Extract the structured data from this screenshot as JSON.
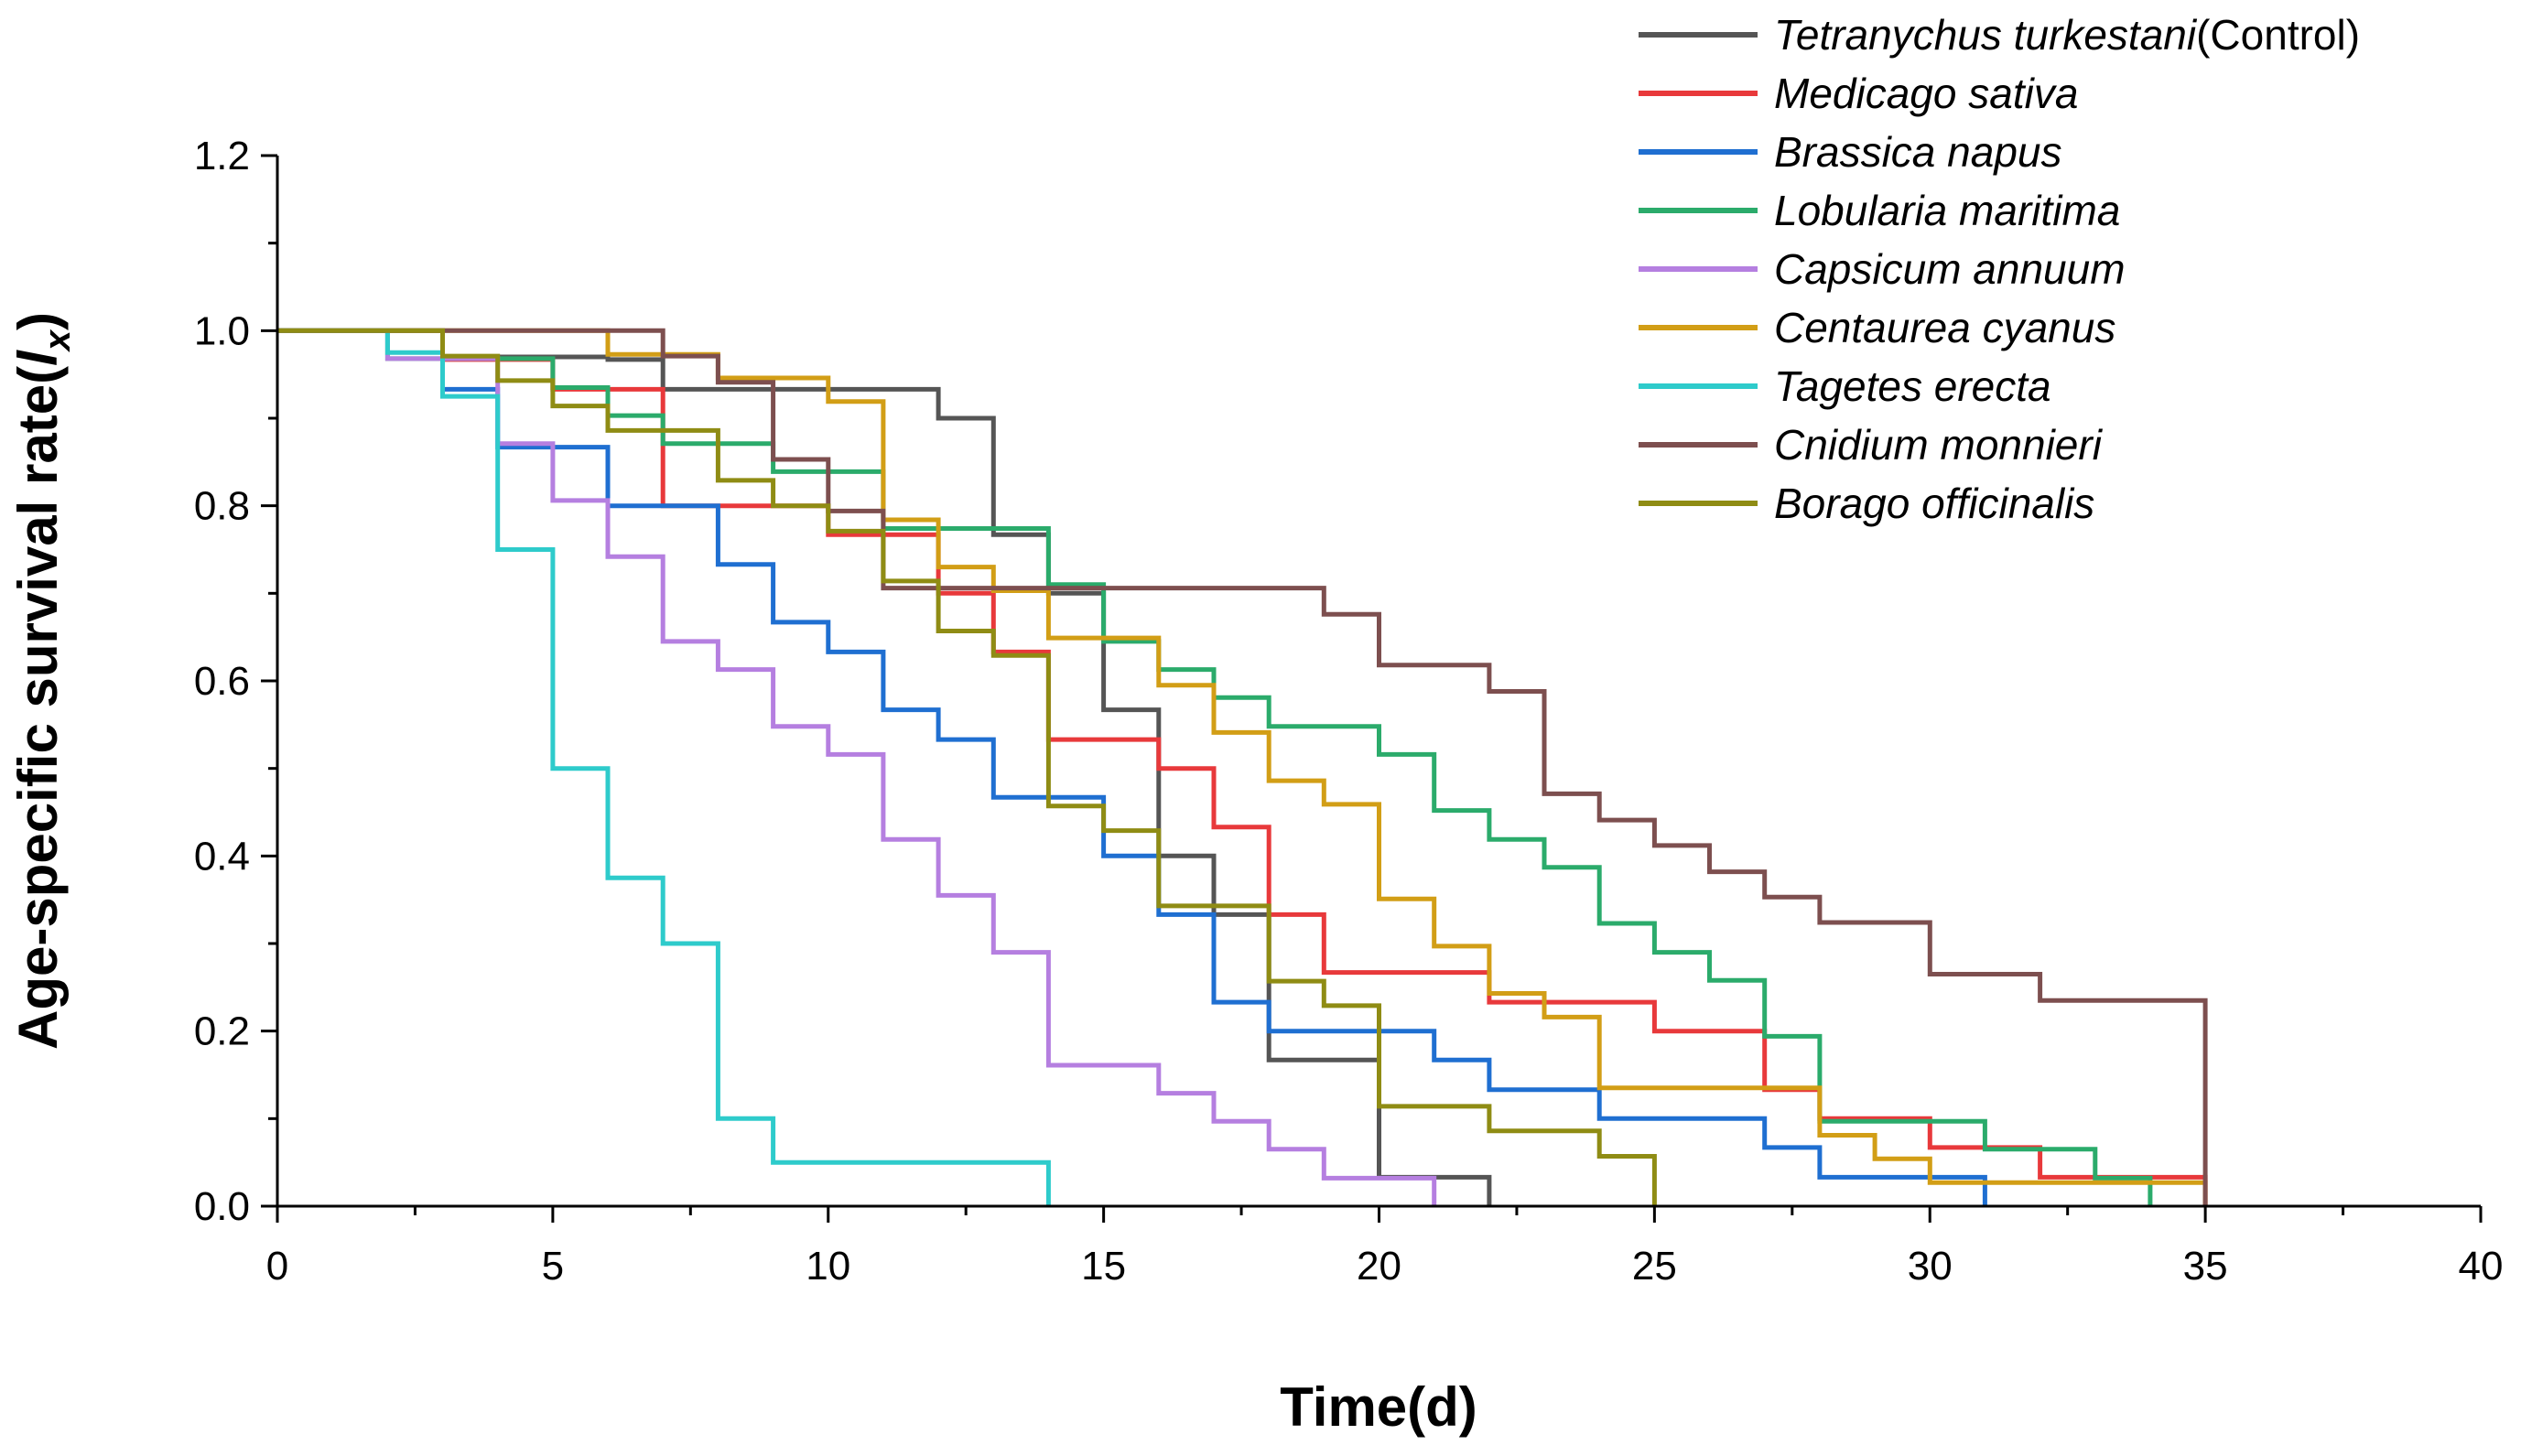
{
  "chart_data": {
    "type": "line",
    "step": true,
    "title": "",
    "xlabel": "Time(d)",
    "ylabel_prefix": "Age-specific survival rate(",
    "ylabel_symbol": "l",
    "ylabel_subscript": "x",
    "ylabel_suffix": ")",
    "xlim": [
      0,
      40
    ],
    "ylim": [
      0,
      1.2
    ],
    "x_ticks": [
      "0",
      "5",
      "10",
      "15",
      "20",
      "25",
      "30",
      "35",
      "40"
    ],
    "y_ticks": [
      "0.0",
      "0.2",
      "0.4",
      "0.6",
      "0.8",
      "1.0",
      "1.2"
    ],
    "grid": false,
    "legend_position": "top-right",
    "series": [
      {
        "name": "Tetranychus turkestani",
        "suffix": "(Control)",
        "color": "#555555",
        "points": [
          [
            0,
            1.0
          ],
          [
            3,
            0.97
          ],
          [
            6,
            0.967
          ],
          [
            7,
            0.933
          ],
          [
            12,
            0.9
          ],
          [
            13,
            0.767
          ],
          [
            14,
            0.7
          ],
          [
            15,
            0.567
          ],
          [
            16,
            0.4
          ],
          [
            17,
            0.333
          ],
          [
            18,
            0.167
          ],
          [
            20,
            0.033
          ],
          [
            22,
            0.0
          ]
        ]
      },
      {
        "name": "Medicago sativa",
        "suffix": "",
        "color": "#e8393b",
        "points": [
          [
            0,
            1.0
          ],
          [
            3,
            0.967
          ],
          [
            5,
            0.933
          ],
          [
            7,
            0.8
          ],
          [
            10,
            0.767
          ],
          [
            12,
            0.7
          ],
          [
            13,
            0.633
          ],
          [
            14,
            0.533
          ],
          [
            16,
            0.5
          ],
          [
            17,
            0.433
          ],
          [
            18,
            0.333
          ],
          [
            19,
            0.267
          ],
          [
            22,
            0.233
          ],
          [
            25,
            0.2
          ],
          [
            27,
            0.133
          ],
          [
            28,
            0.1
          ],
          [
            30,
            0.067
          ],
          [
            32,
            0.033
          ],
          [
            35,
            0.0
          ]
        ]
      },
      {
        "name": "Brassica napus",
        "suffix": "",
        "color": "#1f6fd1",
        "points": [
          [
            0,
            1.0
          ],
          [
            3,
            0.933
          ],
          [
            4,
            0.867
          ],
          [
            6,
            0.8
          ],
          [
            8,
            0.733
          ],
          [
            9,
            0.667
          ],
          [
            10,
            0.633
          ],
          [
            11,
            0.567
          ],
          [
            12,
            0.533
          ],
          [
            13,
            0.467
          ],
          [
            15,
            0.4
          ],
          [
            16,
            0.333
          ],
          [
            17,
            0.233
          ],
          [
            18,
            0.2
          ],
          [
            21,
            0.167
          ],
          [
            22,
            0.133
          ],
          [
            24,
            0.1
          ],
          [
            27,
            0.067
          ],
          [
            28,
            0.033
          ],
          [
            31,
            0.0
          ]
        ]
      },
      {
        "name": "Lobularia maritima",
        "suffix": "",
        "color": "#2bab6b",
        "points": [
          [
            0,
            1.0
          ],
          [
            2,
            0.968
          ],
          [
            5,
            0.935
          ],
          [
            6,
            0.903
          ],
          [
            7,
            0.871
          ],
          [
            9,
            0.839
          ],
          [
            11,
            0.774
          ],
          [
            14,
            0.71
          ],
          [
            15,
            0.645
          ],
          [
            16,
            0.613
          ],
          [
            17,
            0.581
          ],
          [
            18,
            0.548
          ],
          [
            20,
            0.516
          ],
          [
            21,
            0.452
          ],
          [
            22,
            0.419
          ],
          [
            23,
            0.387
          ],
          [
            24,
            0.323
          ],
          [
            25,
            0.29
          ],
          [
            26,
            0.258
          ],
          [
            27,
            0.194
          ],
          [
            28,
            0.097
          ],
          [
            31,
            0.065
          ],
          [
            33,
            0.032
          ],
          [
            34,
            0.0
          ]
        ]
      },
      {
        "name": "Capsicum annuum",
        "suffix": "",
        "color": "#b57fe0",
        "points": [
          [
            0,
            1.0
          ],
          [
            2,
            0.968
          ],
          [
            4,
            0.871
          ],
          [
            5,
            0.806
          ],
          [
            6,
            0.742
          ],
          [
            7,
            0.645
          ],
          [
            8,
            0.613
          ],
          [
            9,
            0.548
          ],
          [
            10,
            0.516
          ],
          [
            11,
            0.419
          ],
          [
            12,
            0.355
          ],
          [
            13,
            0.29
          ],
          [
            14,
            0.161
          ],
          [
            16,
            0.129
          ],
          [
            17,
            0.097
          ],
          [
            18,
            0.065
          ],
          [
            19,
            0.032
          ],
          [
            21,
            0.0
          ]
        ]
      },
      {
        "name": "Centaurea cyanus",
        "suffix": "",
        "color": "#d29e16",
        "points": [
          [
            0,
            1.0
          ],
          [
            6,
            0.973
          ],
          [
            8,
            0.946
          ],
          [
            10,
            0.919
          ],
          [
            11,
            0.784
          ],
          [
            12,
            0.73
          ],
          [
            13,
            0.703
          ],
          [
            14,
            0.649
          ],
          [
            16,
            0.595
          ],
          [
            17,
            0.541
          ],
          [
            18,
            0.486
          ],
          [
            19,
            0.459
          ],
          [
            20,
            0.351
          ],
          [
            21,
            0.297
          ],
          [
            22,
            0.243
          ],
          [
            23,
            0.216
          ],
          [
            24,
            0.135
          ],
          [
            28,
            0.081
          ],
          [
            29,
            0.054
          ],
          [
            30,
            0.027
          ],
          [
            35,
            0.0
          ]
        ]
      },
      {
        "name": "Tagetes erecta",
        "suffix": "",
        "color": "#2ecbcb",
        "points": [
          [
            0,
            1.0
          ],
          [
            2,
            0.975
          ],
          [
            3,
            0.925
          ],
          [
            4,
            0.75
          ],
          [
            5,
            0.5
          ],
          [
            6,
            0.375
          ],
          [
            7,
            0.3
          ],
          [
            8,
            0.1
          ],
          [
            9,
            0.05
          ],
          [
            14,
            0.0
          ]
        ]
      },
      {
        "name": "Cnidium monnieri",
        "suffix": "",
        "color": "#7d4f4f",
        "points": [
          [
            0,
            1.0
          ],
          [
            7,
            0.971
          ],
          [
            8,
            0.941
          ],
          [
            9,
            0.853
          ],
          [
            10,
            0.794
          ],
          [
            11,
            0.706
          ],
          [
            19,
            0.676
          ],
          [
            20,
            0.618
          ],
          [
            22,
            0.588
          ],
          [
            23,
            0.471
          ],
          [
            24,
            0.441
          ],
          [
            25,
            0.412
          ],
          [
            26,
            0.382
          ],
          [
            27,
            0.353
          ],
          [
            28,
            0.324
          ],
          [
            30,
            0.265
          ],
          [
            32,
            0.235
          ],
          [
            35,
            0.0
          ]
        ]
      },
      {
        "name": "Borago officinalis",
        "suffix": "",
        "color": "#8f8c14",
        "points": [
          [
            0,
            1.0
          ],
          [
            3,
            0.971
          ],
          [
            4,
            0.943
          ],
          [
            5,
            0.914
          ],
          [
            6,
            0.886
          ],
          [
            8,
            0.829
          ],
          [
            9,
            0.8
          ],
          [
            10,
            0.771
          ],
          [
            11,
            0.714
          ],
          [
            12,
            0.657
          ],
          [
            13,
            0.629
          ],
          [
            14,
            0.457
          ],
          [
            15,
            0.429
          ],
          [
            16,
            0.343
          ],
          [
            18,
            0.257
          ],
          [
            19,
            0.229
          ],
          [
            20,
            0.114
          ],
          [
            22,
            0.086
          ],
          [
            24,
            0.057
          ],
          [
            25,
            0.0
          ]
        ]
      }
    ]
  }
}
